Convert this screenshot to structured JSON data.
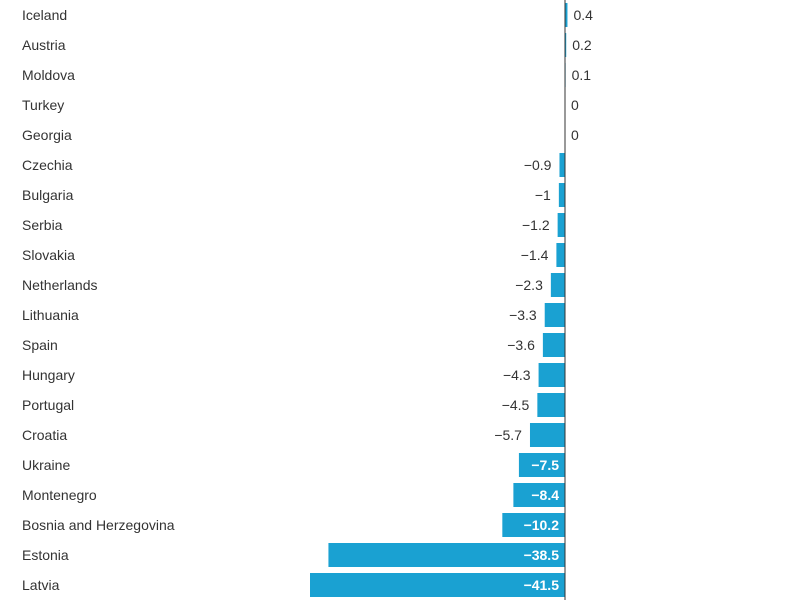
{
  "chart_data": {
    "type": "bar",
    "orientation": "horizontal",
    "categories": [
      "Iceland",
      "Austria",
      "Moldova",
      "Turkey",
      "Georgia",
      "Czechia",
      "Bulgaria",
      "Serbia",
      "Slovakia",
      "Netherlands",
      "Lithuania",
      "Spain",
      "Hungary",
      "Portugal",
      "Croatia",
      "Ukraine",
      "Montenegro",
      "Bosnia and Herzegovina",
      "Estonia",
      "Latvia"
    ],
    "values": [
      0.4,
      0.2,
      0.1,
      0,
      0,
      -0.9,
      -1,
      -1.2,
      -1.4,
      -2.3,
      -3.3,
      -3.6,
      -4.3,
      -4.5,
      -5.7,
      -7.5,
      -8.4,
      -10.2,
      -38.5,
      -41.5
    ],
    "value_labels": [
      "0.4",
      "0.2",
      "0.1",
      "0",
      "0",
      "−0.9",
      "−1",
      "−1.2",
      "−1.4",
      "−2.3",
      "−3.3",
      "−3.6",
      "−4.3",
      "−4.5",
      "−5.7",
      "−7.5",
      "−8.4",
      "−10.2",
      "−38.5",
      "−41.5"
    ],
    "title": "",
    "xlabel": "",
    "ylabel": "",
    "xlim": [
      -41.5,
      4.5
    ],
    "bar_color": "#1aa1d2",
    "axis_color": "#333333"
  }
}
